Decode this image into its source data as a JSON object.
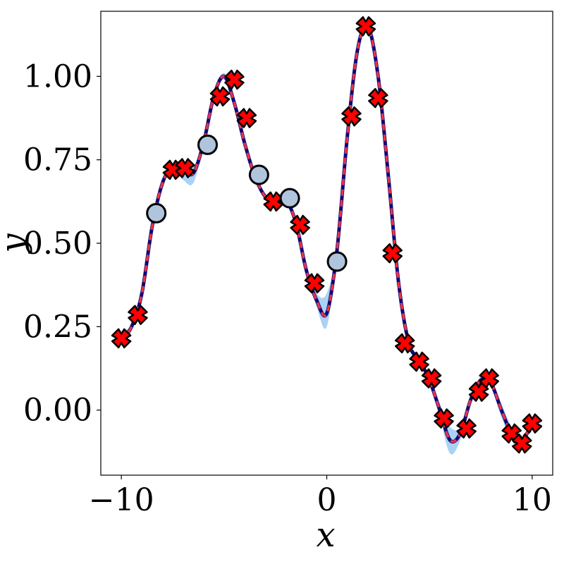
{
  "chart_data": {
    "type": "line",
    "xlabel": "x",
    "ylabel": "y",
    "xlim": [
      -11,
      11
    ],
    "ylim": [
      -0.195,
      1.195
    ],
    "x_ticks": [
      -10,
      0,
      10
    ],
    "x_tick_labels": [
      "−10",
      "0",
      "10"
    ],
    "y_ticks": [
      0.0,
      0.25,
      0.5,
      0.75,
      1.0
    ],
    "y_tick_labels": [
      "0.00",
      "0.25",
      "0.50",
      "0.75",
      "1.00"
    ],
    "grid": false,
    "legend": false,
    "curve": {
      "x": [
        -10,
        -9.5,
        -9,
        -8.5,
        -8,
        -7.5,
        -7,
        -6.5,
        -6,
        -5.5,
        -5,
        -4.5,
        -4,
        -3.5,
        -3,
        -2.5,
        -2,
        -1.5,
        -1,
        -0.5,
        0,
        0.5,
        1,
        1.5,
        2,
        2.5,
        3,
        3.5,
        4,
        4.5,
        5,
        5.5,
        6,
        6.5,
        7,
        7.5,
        8,
        8.5,
        9,
        9.5,
        10
      ],
      "y": [
        0.21,
        0.25,
        0.35,
        0.55,
        0.68,
        0.73,
        0.72,
        0.71,
        0.8,
        0.94,
        1.0,
        0.92,
        0.8,
        0.7,
        0.64,
        0.62,
        0.63,
        0.56,
        0.42,
        0.33,
        0.29,
        0.48,
        0.82,
        1.08,
        1.15,
        1.0,
        0.7,
        0.38,
        0.2,
        0.15,
        0.09,
        0.0,
        -0.09,
        -0.07,
        0.03,
        0.09,
        0.08,
        0.0,
        -0.07,
        -0.09,
        -0.04
      ]
    },
    "band": {
      "lower": [
        0.19,
        0.24,
        0.34,
        0.54,
        0.67,
        0.72,
        0.69,
        0.68,
        0.79,
        0.93,
        0.99,
        0.91,
        0.79,
        0.69,
        0.63,
        0.61,
        0.62,
        0.55,
        0.41,
        0.31,
        0.25,
        0.47,
        0.81,
        1.07,
        1.14,
        0.99,
        0.69,
        0.37,
        0.19,
        0.14,
        0.08,
        -0.02,
        -0.13,
        -0.09,
        0.02,
        0.08,
        0.07,
        -0.02,
        -0.09,
        -0.1,
        -0.05
      ],
      "upper": [
        0.23,
        0.26,
        0.36,
        0.56,
        0.69,
        0.74,
        0.74,
        0.73,
        0.81,
        0.95,
        1.01,
        0.93,
        0.81,
        0.71,
        0.65,
        0.63,
        0.64,
        0.57,
        0.43,
        0.35,
        0.35,
        0.49,
        0.83,
        1.09,
        1.16,
        1.01,
        0.71,
        0.39,
        0.21,
        0.16,
        0.1,
        0.02,
        -0.05,
        -0.05,
        0.04,
        0.1,
        0.09,
        0.02,
        -0.05,
        -0.08,
        -0.03
      ]
    },
    "cross_points": [
      [
        -10.0,
        0.215
      ],
      [
        -9.2,
        0.285
      ],
      [
        -7.5,
        0.72
      ],
      [
        -6.9,
        0.725
      ],
      [
        -5.2,
        0.94
      ],
      [
        -4.5,
        0.99
      ],
      [
        -3.9,
        0.875
      ],
      [
        -2.6,
        0.625
      ],
      [
        -1.3,
        0.555
      ],
      [
        -0.6,
        0.38
      ],
      [
        1.2,
        0.88
      ],
      [
        1.9,
        1.15
      ],
      [
        2.5,
        0.935
      ],
      [
        3.2,
        0.47
      ],
      [
        3.8,
        0.2
      ],
      [
        4.5,
        0.145
      ],
      [
        5.1,
        0.095
      ],
      [
        5.7,
        -0.025
      ],
      [
        6.8,
        -0.055
      ],
      [
        7.4,
        0.055
      ],
      [
        7.9,
        0.095
      ],
      [
        9.0,
        -0.07
      ],
      [
        9.5,
        -0.1
      ],
      [
        10.0,
        -0.04
      ]
    ],
    "circle_points": [
      [
        -8.3,
        0.59
      ],
      [
        -5.8,
        0.795
      ],
      [
        -3.3,
        0.705
      ],
      [
        -1.8,
        0.635
      ],
      [
        0.5,
        0.445
      ]
    ],
    "colors": {
      "curve": "#0a0a7a",
      "dashed": "#e8334a",
      "band": "#8ec3f2",
      "cross_fill": "#ff0000",
      "cross_stroke": "#000000",
      "circle_fill": "#b0c4de",
      "circle_stroke": "#000000"
    }
  }
}
